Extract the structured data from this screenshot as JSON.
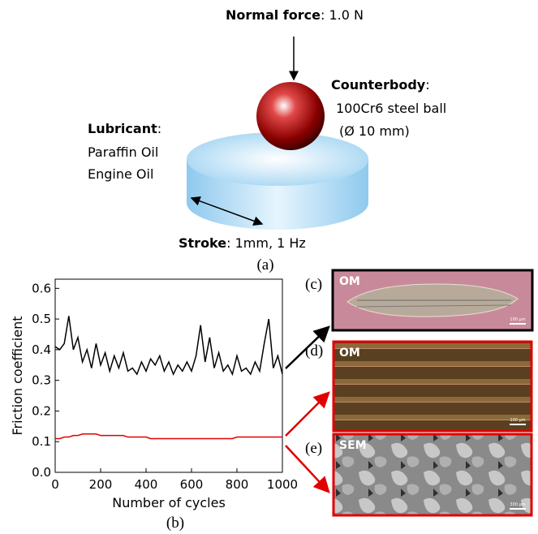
{
  "diagram": {
    "normal_force": {
      "label": "Normal force",
      "text": ": 1.0 N"
    },
    "counterbody": {
      "label": "Counterbody",
      "text": ":",
      "lines": [
        "100Cr6 steel ball",
        "(Ø 10 mm)"
      ]
    },
    "lubricant": {
      "label": "Lubricant",
      "text": ":",
      "lines": [
        "Paraffin Oil",
        "Engine Oil"
      ]
    },
    "stroke": {
      "label": "Stroke",
      "text": ": 1mm, 1 Hz"
    },
    "caption": "(a)"
  },
  "chart_data": {
    "type": "line",
    "caption": "(b)",
    "xlabel": "Number of cycles",
    "ylabel": "Friction coefficient",
    "x": [
      0,
      20,
      40,
      60,
      80,
      100,
      120,
      140,
      160,
      180,
      200,
      220,
      240,
      260,
      280,
      300,
      320,
      340,
      360,
      380,
      400,
      420,
      440,
      460,
      480,
      500,
      520,
      540,
      560,
      580,
      600,
      620,
      640,
      660,
      680,
      700,
      720,
      740,
      760,
      780,
      800,
      820,
      840,
      860,
      880,
      900,
      920,
      940,
      960,
      980,
      1000
    ],
    "series": [
      {
        "color": "#000000",
        "values": [
          0.41,
          0.4,
          0.42,
          0.51,
          0.4,
          0.44,
          0.36,
          0.4,
          0.34,
          0.42,
          0.35,
          0.39,
          0.33,
          0.38,
          0.34,
          0.39,
          0.33,
          0.34,
          0.32,
          0.36,
          0.33,
          0.37,
          0.35,
          0.38,
          0.33,
          0.36,
          0.32,
          0.35,
          0.33,
          0.36,
          0.33,
          0.38,
          0.48,
          0.36,
          0.44,
          0.34,
          0.39,
          0.33,
          0.35,
          0.32,
          0.38,
          0.33,
          0.34,
          0.32,
          0.36,
          0.33,
          0.42,
          0.5,
          0.34,
          0.38,
          0.32
        ]
      },
      {
        "color": "#e00000",
        "values": [
          0.11,
          0.11,
          0.115,
          0.115,
          0.12,
          0.12,
          0.125,
          0.125,
          0.125,
          0.125,
          0.12,
          0.12,
          0.12,
          0.12,
          0.12,
          0.12,
          0.115,
          0.115,
          0.115,
          0.115,
          0.115,
          0.11,
          0.11,
          0.11,
          0.11,
          0.11,
          0.11,
          0.11,
          0.11,
          0.11,
          0.11,
          0.11,
          0.11,
          0.11,
          0.11,
          0.11,
          0.11,
          0.11,
          0.11,
          0.11,
          0.115,
          0.115,
          0.115,
          0.115,
          0.115,
          0.115,
          0.115,
          0.115,
          0.115,
          0.115,
          0.115
        ]
      }
    ],
    "xlim": [
      0,
      1000
    ],
    "xticks": [
      0,
      200,
      400,
      600,
      800,
      1000
    ],
    "ylim": [
      0,
      0.63
    ],
    "yticks": [
      {
        "value": 0,
        "label": "0.0"
      },
      0.1,
      0.2,
      0.3,
      0.4,
      0.5,
      0.6
    ]
  },
  "micrographs": [
    {
      "panel": "(c)",
      "label": "OM",
      "scale": "100 µm"
    },
    {
      "panel": "(d)",
      "label": "OM",
      "scale": "100 µm"
    },
    {
      "panel": "(e)",
      "label": "SEM",
      "scale": "300 µm"
    }
  ]
}
